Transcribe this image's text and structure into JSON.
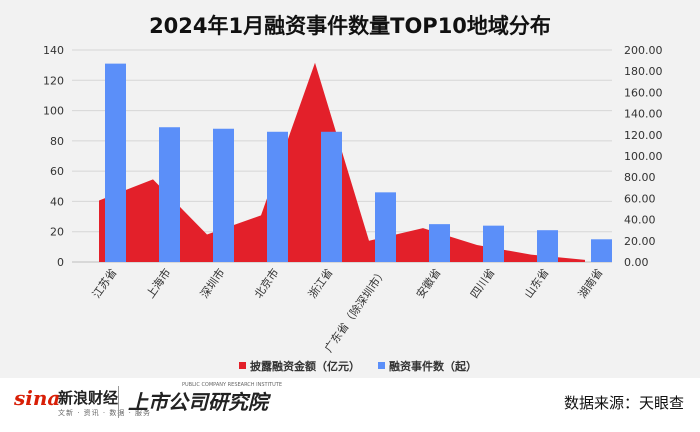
{
  "footer": {
    "sina_logo": "sina",
    "sina_cn": "新浪财经",
    "sina_sub": "文新 · 资讯 · 数据 · 服务",
    "institute_cn": "上市公司研究院",
    "institute_en": "PUBLIC COMPANY RESEARCH INSTITUTE",
    "source": "数据来源：天眼查"
  },
  "colors": {
    "red": "#e3202a",
    "blue": "#5b8ff9"
  },
  "chart_data": {
    "type": "bar",
    "title": "2024年1月融资事件数量TOP10地域分布",
    "categories": [
      "江苏省",
      "上海市",
      "深圳市",
      "北京市",
      "浙江省",
      "广东省（除深圳市）",
      "安徽省",
      "四川省",
      "山东省",
      "湖南省"
    ],
    "series": [
      {
        "name": "披露融资金额（亿元）",
        "kind": "area",
        "axis": "right",
        "color": "#e3202a",
        "values": [
          58,
          78,
          26,
          44,
          188,
          20,
          32,
          16,
          7,
          2
        ]
      },
      {
        "name": "融资事件数（起）",
        "kind": "bar",
        "axis": "left",
        "color": "#5b8ff9",
        "values": [
          131,
          89,
          88,
          86,
          86,
          46,
          25,
          24,
          21,
          15
        ]
      }
    ],
    "left_axis": {
      "min": 0,
      "max": 140,
      "ticks": [
        "0",
        "20",
        "40",
        "60",
        "80",
        "100",
        "120",
        "140"
      ]
    },
    "right_axis": {
      "min": 0,
      "max": 200,
      "ticks": [
        "0.00",
        "20.00",
        "40.00",
        "60.00",
        "80.00",
        "100.00",
        "120.00",
        "140.00",
        "160.00",
        "180.00",
        "200.00"
      ]
    },
    "grid": true,
    "legend": "bottom"
  }
}
